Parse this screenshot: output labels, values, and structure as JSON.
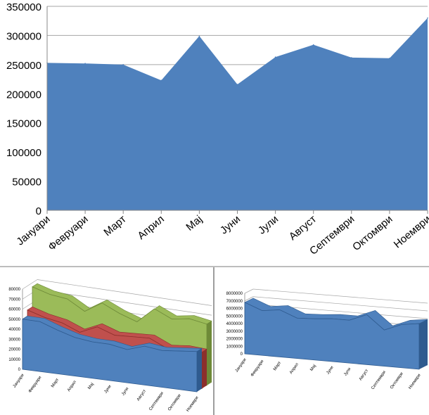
{
  "colors": {
    "series_blue": "#4f81bd",
    "series_blue_dark": "#2f5b8f",
    "series_red": "#c0504d",
    "series_red_dark": "#8c2f2c",
    "series_green": "#9bbb59",
    "series_green_dark": "#6e8a38",
    "grid": "#a6a6a6",
    "text": "#000000"
  },
  "chart_data": [
    {
      "type": "area",
      "categories": [
        "Јануари",
        "Февруари",
        "Март",
        "Април",
        "Мај",
        "Јуни",
        "Јули",
        "Август",
        "Септември",
        "Октомври",
        "Ноември"
      ],
      "series": [
        {
          "values": [
            253000,
            252000,
            250000,
            223000,
            299000,
            216000,
            263000,
            284000,
            262000,
            261000,
            330000
          ]
        }
      ],
      "ylim": [
        0,
        350000
      ],
      "yticks": [
        "0",
        "50000",
        "100000",
        "150000",
        "200000",
        "250000",
        "300000",
        "350000"
      ],
      "grid": true,
      "legend": "none"
    },
    {
      "type": "area",
      "3d": true,
      "categories": [
        "Јануари",
        "Февруари",
        "Март",
        "Април",
        "Мај",
        "Јуни",
        "Јули",
        "Август",
        "Септември",
        "Октомври",
        "Ноември"
      ],
      "series": [
        {
          "values": [
            50000,
            50000,
            44000,
            39000,
            37000,
            37000,
            34000,
            40000,
            38000,
            40000,
            42000
          ]
        },
        {
          "values": [
            56000,
            51000,
            48000,
            41000,
            49000,
            43000,
            44000,
            45000,
            37000,
            39000,
            38000
          ]
        },
        {
          "values": [
            76000,
            71000,
            69000,
            59000,
            70000,
            62000,
            56000,
            72000,
            64000,
            67000,
            64000
          ]
        }
      ],
      "ylim": [
        0,
        80000
      ],
      "yticks": [
        "0",
        "10000",
        "20000",
        "30000",
        "40000",
        "50000",
        "60000",
        "70000",
        "80000"
      ],
      "grid": true,
      "legend": "none"
    },
    {
      "type": "area",
      "3d": true,
      "categories": [
        "Јануари",
        "Февруари",
        "Март",
        "Април",
        "Мај",
        "Јуни",
        "Јули",
        "Август",
        "Септември",
        "Октомври",
        "Ноември"
      ],
      "series": [
        {
          "values": [
            6800000,
            5900000,
            6200000,
            5300000,
            5400000,
            5600000,
            5600000,
            6500000,
            4700000,
            5600000,
            5900000
          ]
        }
      ],
      "ylim": [
        0,
        8000000
      ],
      "yticks": [
        "0",
        "1000000",
        "2000000",
        "3000000",
        "4000000",
        "5000000",
        "6000000",
        "7000000",
        "8000000"
      ],
      "grid": true,
      "legend": "none"
    }
  ]
}
